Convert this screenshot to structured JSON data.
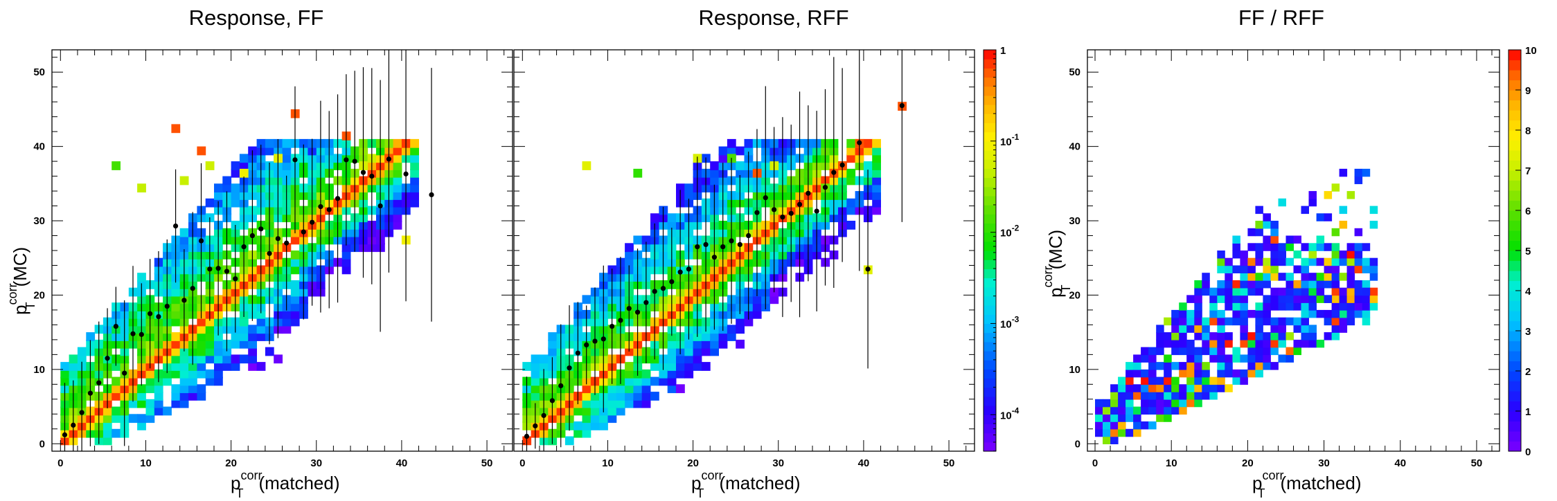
{
  "chart_data": [
    {
      "type": "heatmap",
      "title": "Response, FF",
      "xlabel": {
        "base": "p",
        "sup": "corr",
        "sub": "T",
        "rest": "(matched)"
      },
      "ylabel": {
        "base": "p",
        "sup": "corr",
        "sub": "T",
        "rest": "(MC)"
      },
      "xlim": [
        -1,
        53
      ],
      "ylim": [
        -1,
        53
      ],
      "xticks": [
        "0",
        "10",
        "20",
        "30",
        "40",
        "50"
      ],
      "yticks": [
        "0",
        "10",
        "20",
        "30",
        "40",
        "50"
      ],
      "zscale": "log",
      "profile_points": [
        [
          0.5,
          1.2
        ],
        [
          1.5,
          2.5
        ],
        [
          2.5,
          4.2
        ],
        [
          3.5,
          6.8
        ],
        [
          4.5,
          8.2
        ],
        [
          5.5,
          11.5
        ],
        [
          6.5,
          15.8
        ],
        [
          7.5,
          9.5
        ],
        [
          8.5,
          14.8
        ],
        [
          9.5,
          14.7
        ],
        [
          10.5,
          17.5
        ],
        [
          11.5,
          17.1
        ],
        [
          12.5,
          18.5
        ],
        [
          13.5,
          29.3
        ],
        [
          14.5,
          19.3
        ],
        [
          15.5,
          20.9
        ],
        [
          16.5,
          27.3
        ],
        [
          17.5,
          23.5
        ],
        [
          18.5,
          23.6
        ],
        [
          19.5,
          23.2
        ],
        [
          20.5,
          22.2
        ],
        [
          21.5,
          26.5
        ],
        [
          22.5,
          28.0
        ],
        [
          23.5,
          28.9
        ],
        [
          24.5,
          25.6
        ],
        [
          25.5,
          27.6
        ],
        [
          26.5,
          27.0
        ],
        [
          27.5,
          38.2
        ],
        [
          28.5,
          28.5
        ],
        [
          29.5,
          29.8
        ],
        [
          30.5,
          31.9
        ],
        [
          31.5,
          31.5
        ],
        [
          32.5,
          33.0
        ],
        [
          33.5,
          38.2
        ],
        [
          34.5,
          38.0
        ],
        [
          35.5,
          36.5
        ],
        [
          36.5,
          36.0
        ],
        [
          37.5,
          32.0
        ],
        [
          38.5,
          38.3
        ],
        [
          40.5,
          36.3
        ],
        [
          43.5,
          33.5
        ]
      ]
    },
    {
      "type": "heatmap",
      "title": "Response, RFF",
      "xlabel": {
        "base": "p",
        "sup": "corr",
        "sub": "T",
        "rest": "(matched)"
      },
      "xlim": [
        -1,
        53
      ],
      "ylim": [
        -1,
        53
      ],
      "xticks": [
        "0",
        "10",
        "20",
        "30",
        "40",
        "50"
      ],
      "zscale": "log",
      "zticks": [
        "1",
        "10",
        "10",
        "10",
        "10"
      ],
      "zexponents": [
        "",
        "-1",
        "-2",
        "-3",
        "-4"
      ],
      "profile_points": [
        [
          0.5,
          1.0
        ],
        [
          1.5,
          2.4
        ],
        [
          2.5,
          3.8
        ],
        [
          3.5,
          5.8
        ],
        [
          4.5,
          7.8
        ],
        [
          5.5,
          10.2
        ],
        [
          6.5,
          12.2
        ],
        [
          7.5,
          13.3
        ],
        [
          8.5,
          13.8
        ],
        [
          9.5,
          14.1
        ],
        [
          10.5,
          15.8
        ],
        [
          11.5,
          16.6
        ],
        [
          12.5,
          18.2
        ],
        [
          13.5,
          17.7
        ],
        [
          14.5,
          19.0
        ],
        [
          15.5,
          20.5
        ],
        [
          16.5,
          20.9
        ],
        [
          17.5,
          21.8
        ],
        [
          18.5,
          23.1
        ],
        [
          19.5,
          23.5
        ],
        [
          20.5,
          26.5
        ],
        [
          21.5,
          26.8
        ],
        [
          22.5,
          25.1
        ],
        [
          23.5,
          26.5
        ],
        [
          24.5,
          27.3
        ],
        [
          25.5,
          26.8
        ],
        [
          26.5,
          28.0
        ],
        [
          27.5,
          31.1
        ],
        [
          28.5,
          33.1
        ],
        [
          29.5,
          31.5
        ],
        [
          30.5,
          30.5
        ],
        [
          31.5,
          31.0
        ],
        [
          32.5,
          32.2
        ],
        [
          33.5,
          33.7
        ],
        [
          34.5,
          31.3
        ],
        [
          35.5,
          34.5
        ],
        [
          36.5,
          36.5
        ],
        [
          37.5,
          37.5
        ],
        [
          39.5,
          40.5
        ],
        [
          40.5,
          23.5
        ],
        [
          44.5,
          45.5
        ]
      ]
    },
    {
      "type": "heatmap",
      "title": "FF / RFF",
      "xlabel": {
        "base": "p",
        "sup": "corr",
        "sub": "T",
        "rest": "(matched)"
      },
      "ylabel": {
        "base": "p",
        "sup": "corr",
        "sub": "T",
        "rest": "(MC)"
      },
      "xlim": [
        -1,
        53
      ],
      "ylim": [
        -1,
        53
      ],
      "xticks": [
        "0",
        "10",
        "20",
        "30",
        "40",
        "50"
      ],
      "yticks": [
        "0",
        "10",
        "20",
        "30",
        "40",
        "50"
      ],
      "zscale": "linear",
      "zlim": [
        0,
        10
      ],
      "zticks": [
        "0",
        "1",
        "2",
        "3",
        "4",
        "5",
        "6",
        "7",
        "8",
        "9",
        "10"
      ]
    }
  ]
}
